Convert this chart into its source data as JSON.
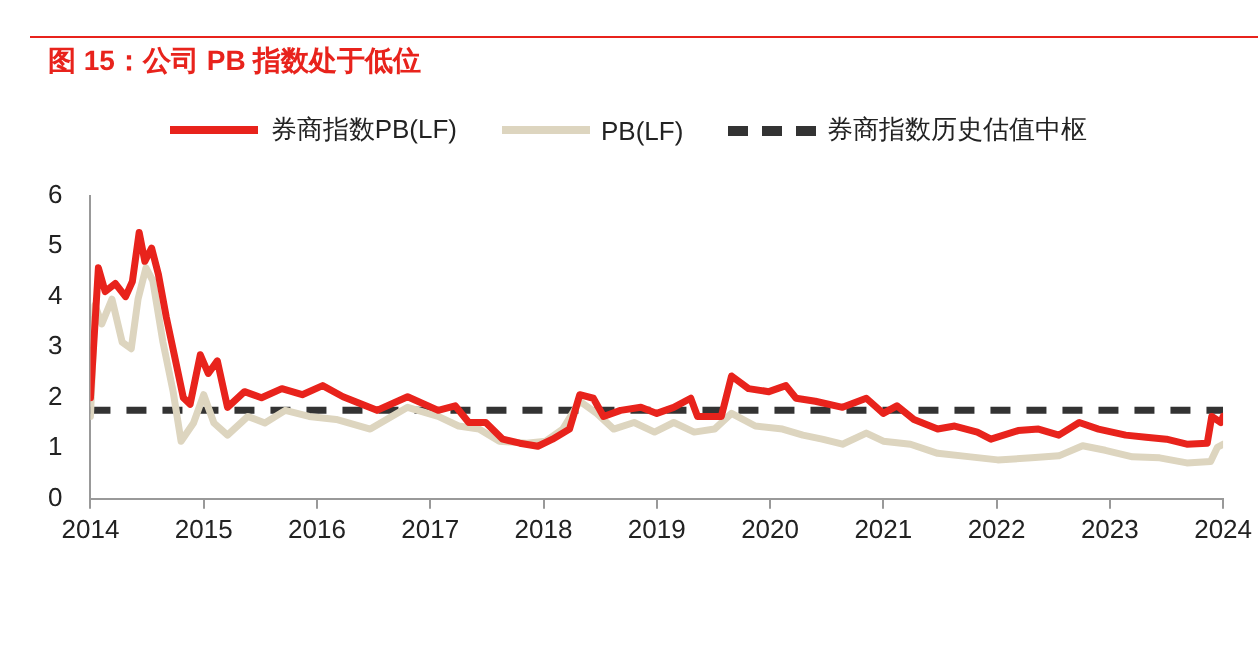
{
  "chart_data": {
    "type": "line",
    "title": "图 15：公司 PB 指数处于低位",
    "xlim": [
      2014,
      2024
    ],
    "xticks": [
      2014,
      2015,
      2016,
      2017,
      2018,
      2019,
      2020,
      2021,
      2022,
      2023,
      2024
    ],
    "ylim": [
      0,
      6
    ],
    "yticks": [
      0,
      1,
      2,
      3,
      4,
      5,
      6
    ],
    "grid": false,
    "legend": "top",
    "marker": "none",
    "series": [
      {
        "name": "券商指数PB(LF)",
        "color": "#e8231c",
        "x": [
          2014,
          2014.07,
          2014.13,
          2014.22,
          2014.31,
          2014.37,
          2014.43,
          2014.48,
          2014.54,
          2014.6,
          2014.67,
          2014.74,
          2014.82,
          2014.88,
          2014.97,
          2015.04,
          2015.12,
          2015.21,
          2015.36,
          2015.51,
          2015.69,
          2015.87,
          2016.05,
          2016.23,
          2016.53,
          2016.8,
          2017.07,
          2017.22,
          2017.34,
          2017.49,
          2017.64,
          2017.79,
          2017.95,
          2018.08,
          2018.23,
          2018.32,
          2018.44,
          2018.53,
          2018.68,
          2018.86,
          2019,
          2019.15,
          2019.3,
          2019.36,
          2019.57,
          2019.66,
          2019.81,
          2019.99,
          2020.14,
          2020.23,
          2020.4,
          2020.64,
          2020.85,
          2021,
          2021.12,
          2021.27,
          2021.48,
          2021.63,
          2021.83,
          2021.95,
          2022.19,
          2022.37,
          2022.55,
          2022.73,
          2022.9,
          2023.14,
          2023.32,
          2023.5,
          2023.68,
          2023.86,
          2023.9,
          2023.98,
          2024
        ],
        "values": [
          2.0,
          4.57,
          4.1,
          4.26,
          4.0,
          4.3,
          5.27,
          4.7,
          4.96,
          4.44,
          3.59,
          2.85,
          2.0,
          1.87,
          2.85,
          2.48,
          2.73,
          1.81,
          2.12,
          2.0,
          2.18,
          2.06,
          2.24,
          2.02,
          1.75,
          2.02,
          1.75,
          1.84,
          1.51,
          1.51,
          1.18,
          1.1,
          1.04,
          1.18,
          1.38,
          2.06,
          1.99,
          1.63,
          1.75,
          1.81,
          1.69,
          1.81,
          1.99,
          1.63,
          1.63,
          2.43,
          2.18,
          2.12,
          2.24,
          1.99,
          1.93,
          1.81,
          1.99,
          1.69,
          1.84,
          1.57,
          1.38,
          1.44,
          1.32,
          1.18,
          1.35,
          1.38,
          1.26,
          1.51,
          1.38,
          1.26,
          1.22,
          1.18,
          1.08,
          1.1,
          1.63,
          1.51,
          1.63
        ]
      },
      {
        "name": "PB(LF)",
        "color": "#ddd5bf",
        "x": [
          2014,
          2014.04,
          2014.1,
          2014.19,
          2014.28,
          2014.36,
          2014.42,
          2014.49,
          2014.55,
          2014.64,
          2014.73,
          2014.8,
          2014.91,
          2015,
          2015.09,
          2015.21,
          2015.39,
          2015.54,
          2015.72,
          2015.93,
          2016.17,
          2016.47,
          2016.8,
          2017.07,
          2017.25,
          2017.43,
          2017.61,
          2017.85,
          2018.02,
          2018.17,
          2018.32,
          2018.47,
          2018.62,
          2018.8,
          2018.98,
          2019.15,
          2019.33,
          2019.51,
          2019.66,
          2019.87,
          2020.11,
          2020.29,
          2020.46,
          2020.64,
          2020.85,
          2021,
          2021.24,
          2021.48,
          2021.77,
          2022.01,
          2022.31,
          2022.55,
          2022.76,
          2022.96,
          2023.2,
          2023.44,
          2023.68,
          2023.89,
          2023.95,
          2024
        ],
        "values": [
          1.63,
          3.83,
          3.46,
          3.95,
          3.1,
          2.97,
          3.95,
          4.57,
          4.32,
          3.1,
          2.12,
          1.14,
          1.5,
          2.06,
          1.5,
          1.26,
          1.63,
          1.5,
          1.75,
          1.63,
          1.57,
          1.38,
          1.81,
          1.63,
          1.44,
          1.38,
          1.14,
          1.1,
          1.14,
          1.38,
          1.93,
          1.69,
          1.38,
          1.51,
          1.32,
          1.51,
          1.32,
          1.38,
          1.69,
          1.44,
          1.38,
          1.26,
          1.18,
          1.08,
          1.3,
          1.14,
          1.08,
          0.9,
          0.83,
          0.77,
          0.81,
          0.85,
          1.05,
          0.96,
          0.83,
          0.81,
          0.71,
          0.74,
          1.02,
          1.08
        ]
      },
      {
        "name": "券商指数历史估值中枢",
        "color": "#333333",
        "line_style": "dashed",
        "x": [
          2014,
          2024
        ],
        "values": [
          1.75,
          1.75
        ]
      }
    ]
  }
}
